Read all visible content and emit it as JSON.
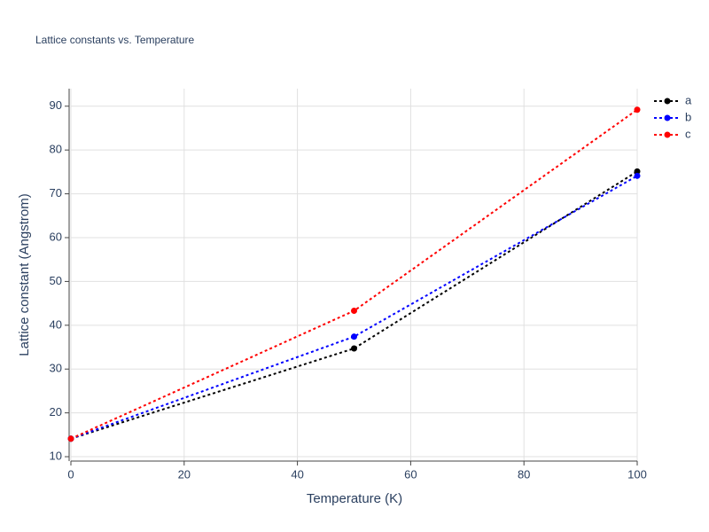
{
  "chart_data": {
    "type": "line",
    "title": "Lattice constants vs. Temperature",
    "x_label": "Temperature (K)",
    "y_label": "Lattice constant (Angstrom)",
    "x": [
      0,
      50,
      100
    ],
    "series": [
      {
        "name": "a",
        "color": "#000000",
        "values": [
          14.1,
          34.7,
          75.1
        ]
      },
      {
        "name": "b",
        "color": "#0000ff",
        "values": [
          14.1,
          37.4,
          74.1
        ]
      },
      {
        "name": "c",
        "color": "#ff0000",
        "values": [
          14.1,
          43.3,
          89.2
        ]
      }
    ],
    "xlim": [
      0,
      100
    ],
    "xticks": [
      0,
      20,
      40,
      60,
      80,
      100
    ],
    "ylim": [
      9,
      94
    ],
    "yticks": [
      10,
      20,
      30,
      40,
      50,
      60,
      70,
      80,
      90
    ],
    "grid": true,
    "legend": "top-right",
    "line_style": "dotted"
  }
}
